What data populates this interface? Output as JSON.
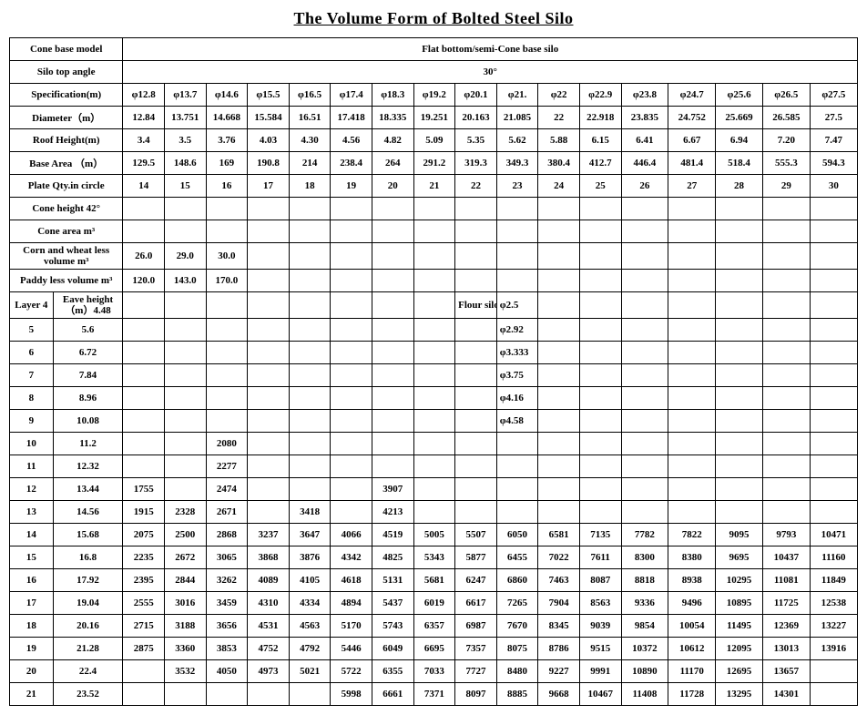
{
  "title": "The Volume Form of Bolted Steel Silo",
  "headers": {
    "cone_base_model": "Cone base model",
    "flat_bottom": "Flat bottom/semi-Cone base silo",
    "silo_top_angle": "Silo top angle",
    "angle30": "30°",
    "specification": "Specification(m)",
    "diameter": "Diameter（m）",
    "roof_height": "Roof Height(m)",
    "base_area": "Base Area （m）",
    "plate_qty": "Plate Qty.in circle",
    "cone_height": "Cone height 42°",
    "cone_area": "Cone area m³",
    "corn_wheat": "Corn and wheat less volume m³",
    "paddy_less": "Paddy less volume m³",
    "layer4": "Layer 4",
    "eave_height": "Eave height（m）4.48",
    "flour_silo": "Flour silo"
  },
  "spec": [
    "φ12.8",
    "φ13.7",
    "φ14.6",
    "φ15.5",
    "φ16.5",
    "φ17.4",
    "φ18.3",
    "φ19.2",
    "φ20.1",
    "φ21.",
    "φ22",
    "φ22.9",
    "φ23.8",
    "φ24.7",
    "φ25.6",
    "φ26.5",
    "φ27.5"
  ],
  "diameter": [
    "12.84",
    "13.751",
    "14.668",
    "15.584",
    "16.51",
    "17.418",
    "18.335",
    "19.251",
    "20.163",
    "21.085",
    "22",
    "22.918",
    "23.835",
    "24.752",
    "25.669",
    "26.585",
    "27.5"
  ],
  "roof": [
    "3.4",
    "3.5",
    "3.76",
    "4.03",
    "4.30",
    "4.56",
    "4.82",
    "5.09",
    "5.35",
    "5.62",
    "5.88",
    "6.15",
    "6.41",
    "6.67",
    "6.94",
    "7.20",
    "7.47"
  ],
  "base_area": [
    "129.5",
    "148.6",
    "169",
    "190.8",
    "214",
    "238.4",
    "264",
    "291.2",
    "319.3",
    "349.3",
    "380.4",
    "412.7",
    "446.4",
    "481.4",
    "518.4",
    "555.3",
    "594.3"
  ],
  "plate_qty": [
    "14",
    "15",
    "16",
    "17",
    "18",
    "19",
    "20",
    "21",
    "22",
    "23",
    "24",
    "25",
    "26",
    "27",
    "28",
    "29",
    "30"
  ],
  "corn": [
    "26.0",
    "29.0",
    "30.0",
    "",
    "",
    "",
    "",
    "",
    "",
    "",
    "",
    "",
    "",
    "",
    "",
    "",
    ""
  ],
  "paddy": [
    "120.0",
    "143.0",
    "170.0",
    "",
    "",
    "",
    "",
    "",
    "",
    "",
    "",
    "",
    "",
    "",
    "",
    "",
    ""
  ],
  "flour_row": [
    "",
    "",
    "",
    "",
    "",
    "",
    "",
    "",
    "Flour silo",
    "φ2.5",
    "",
    "",
    "",
    "",
    "",
    "",
    ""
  ],
  "layers": [
    {
      "n": "5",
      "e": "5.6",
      "d": [
        "",
        "",
        "",
        "",
        "",
        "",
        "",
        "",
        "",
        "φ2.92",
        "",
        "",
        "",
        "",
        "",
        "",
        ""
      ]
    },
    {
      "n": "6",
      "e": "6.72",
      "d": [
        "",
        "",
        "",
        "",
        "",
        "",
        "",
        "",
        "",
        "φ3.333",
        "",
        "",
        "",
        "",
        "",
        "",
        ""
      ]
    },
    {
      "n": "7",
      "e": "7.84",
      "d": [
        "",
        "",
        "",
        "",
        "",
        "",
        "",
        "",
        "",
        "φ3.75",
        "",
        "",
        "",
        "",
        "",
        "",
        ""
      ]
    },
    {
      "n": "8",
      "e": "8.96",
      "d": [
        "",
        "",
        "",
        "",
        "",
        "",
        "",
        "",
        "",
        "φ4.16",
        "",
        "",
        "",
        "",
        "",
        "",
        ""
      ]
    },
    {
      "n": "9",
      "e": "10.08",
      "d": [
        "",
        "",
        "",
        "",
        "",
        "",
        "",
        "",
        "",
        "φ4.58",
        "",
        "",
        "",
        "",
        "",
        "",
        ""
      ]
    },
    {
      "n": "10",
      "e": "11.2",
      "d": [
        "",
        "",
        "2080",
        "",
        "",
        "",
        "",
        "",
        "",
        "",
        "",
        "",
        "",
        "",
        "",
        "",
        ""
      ]
    },
    {
      "n": "11",
      "e": "12.32",
      "d": [
        "",
        "",
        "2277",
        "",
        "",
        "",
        "",
        "",
        "",
        "",
        "",
        "",
        "",
        "",
        "",
        "",
        ""
      ]
    },
    {
      "n": "12",
      "e": "13.44",
      "d": [
        "1755",
        "",
        "2474",
        "",
        "",
        "",
        "3907",
        "",
        "",
        "",
        "",
        "",
        "",
        "",
        "",
        "",
        ""
      ]
    },
    {
      "n": "13",
      "e": "14.56",
      "d": [
        "1915",
        "2328",
        "2671",
        "",
        "3418",
        "",
        "4213",
        "",
        "",
        "",
        "",
        "",
        "",
        "",
        "",
        "",
        ""
      ]
    },
    {
      "n": "14",
      "e": "15.68",
      "d": [
        "2075",
        "2500",
        "2868",
        "3237",
        "3647",
        "4066",
        "4519",
        "5005",
        "5507",
        "6050",
        "6581",
        "7135",
        "7782",
        "7822",
        "9095",
        "9793",
        "10471"
      ]
    },
    {
      "n": "15",
      "e": "16.8",
      "d": [
        "2235",
        "2672",
        "3065",
        "3868",
        "3876",
        "4342",
        "4825",
        "5343",
        "5877",
        "6455",
        "7022",
        "7611",
        "8300",
        "8380",
        "9695",
        "10437",
        "11160"
      ]
    },
    {
      "n": "16",
      "e": "17.92",
      "d": [
        "2395",
        "2844",
        "3262",
        "4089",
        "4105",
        "4618",
        "5131",
        "5681",
        "6247",
        "6860",
        "7463",
        "8087",
        "8818",
        "8938",
        "10295",
        "11081",
        "11849"
      ]
    },
    {
      "n": "17",
      "e": "19.04",
      "d": [
        "2555",
        "3016",
        "3459",
        "4310",
        "4334",
        "4894",
        "5437",
        "6019",
        "6617",
        "7265",
        "7904",
        "8563",
        "9336",
        "9496",
        "10895",
        "11725",
        "12538"
      ]
    },
    {
      "n": "18",
      "e": "20.16",
      "d": [
        "2715",
        "3188",
        "3656",
        "4531",
        "4563",
        "5170",
        "5743",
        "6357",
        "6987",
        "7670",
        "8345",
        "9039",
        "9854",
        "10054",
        "11495",
        "12369",
        "13227"
      ]
    },
    {
      "n": "19",
      "e": "21.28",
      "d": [
        "2875",
        "3360",
        "3853",
        "4752",
        "4792",
        "5446",
        "6049",
        "6695",
        "7357",
        "8075",
        "8786",
        "9515",
        "10372",
        "10612",
        "12095",
        "13013",
        "13916"
      ]
    },
    {
      "n": "20",
      "e": "22.4",
      "d": [
        "",
        "3532",
        "4050",
        "4973",
        "5021",
        "5722",
        "6355",
        "7033",
        "7727",
        "8480",
        "9227",
        "9991",
        "10890",
        "11170",
        "12695",
        "13657",
        ""
      ]
    },
    {
      "n": "21",
      "e": "23.52",
      "d": [
        "",
        "",
        "",
        "",
        "",
        "5998",
        "6661",
        "7371",
        "8097",
        "8885",
        "9668",
        "10467",
        "11408",
        "11728",
        "13295",
        "14301",
        ""
      ]
    }
  ],
  "style": {
    "background_color": "#ffffff",
    "text_color": "#000000",
    "border_color": "#000000",
    "title_fontsize": 18,
    "cell_fontsize": 11,
    "font_family": "Times New Roman"
  }
}
